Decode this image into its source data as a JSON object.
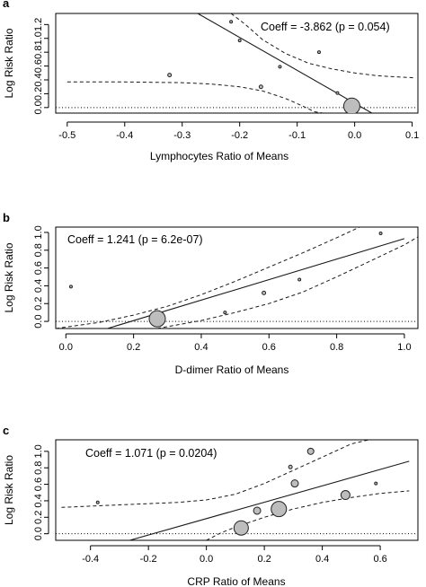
{
  "chart_data": [
    {
      "type": "scatter",
      "panel_label": "a",
      "annotation": "Coeff = -3.862 (p = 0.054)",
      "xlabel": "Lymphocytes Ratio of Means",
      "ylabel": "Log Risk Ratio",
      "xlim": [
        -0.52,
        0.11
      ],
      "ylim": [
        -0.08,
        1.36
      ],
      "xticks": [
        -0.5,
        -0.4,
        -0.3,
        -0.2,
        -0.1,
        0.0,
        0.1
      ],
      "xtick_labels": [
        "-0.5",
        "-0.4",
        "-0.3",
        "-0.2",
        "-0.1",
        "0.0",
        "0.1"
      ],
      "yticks": [
        0.0,
        0.2,
        0.4,
        0.6,
        0.8,
        1.0,
        1.2
      ],
      "ytick_labels": [
        "0.0",
        "0.2",
        "0.4",
        "0.6",
        "0.8",
        "1.0",
        "1.2"
      ],
      "grid": false,
      "points": [
        {
          "x": -0.322,
          "y": 0.47,
          "r": 2
        },
        {
          "x": -0.215,
          "y": 1.24,
          "r": 1.5
        },
        {
          "x": -0.2,
          "y": 0.97,
          "r": 1.5
        },
        {
          "x": -0.163,
          "y": 0.3,
          "r": 2
        },
        {
          "x": -0.13,
          "y": 0.59,
          "r": 1.5
        },
        {
          "x": -0.062,
          "y": 0.8,
          "r": 1.5
        },
        {
          "x": -0.03,
          "y": 0.21,
          "r": 1.5
        },
        {
          "x": -0.012,
          "y": 0.09,
          "r": 2
        },
        {
          "x": -0.005,
          "y": 0.02,
          "r": 9
        }
      ],
      "fit": {
        "x": [
          -0.273,
          0.03
        ],
        "y": [
          1.36,
          -0.08
        ]
      },
      "ci_upper": {
        "x": [
          -0.215,
          -0.19,
          -0.16,
          -0.12,
          -0.08,
          -0.04,
          0.0,
          0.04,
          0.08,
          0.105
        ],
        "y": [
          1.36,
          1.2,
          0.98,
          0.78,
          0.64,
          0.56,
          0.5,
          0.46,
          0.44,
          0.43
        ]
      },
      "ci_lower": {
        "x": [
          -0.5,
          -0.4,
          -0.3,
          -0.25,
          -0.2,
          -0.16,
          -0.12,
          -0.09,
          -0.07,
          -0.055
        ],
        "y": [
          0.37,
          0.37,
          0.36,
          0.34,
          0.3,
          0.24,
          0.13,
          0.02,
          -0.06,
          -0.08
        ]
      },
      "reference_y": 0
    },
    {
      "type": "scatter",
      "panel_label": "b",
      "annotation": "Coeff = 1.241 (p = 6.2e-07)",
      "xlabel": "D-dimer Ratio of Means",
      "ylabel": "Log Risk Ratio",
      "xlim": [
        -0.03,
        1.04
      ],
      "ylim": [
        -0.08,
        1.06
      ],
      "xticks": [
        0.0,
        0.2,
        0.4,
        0.6,
        0.8,
        1.0
      ],
      "xtick_labels": [
        "0.0",
        "0.2",
        "0.4",
        "0.6",
        "0.8",
        "1.0"
      ],
      "yticks": [
        0.0,
        0.2,
        0.4,
        0.6,
        0.8,
        1.0
      ],
      "ytick_labels": [
        "0.0",
        "0.2",
        "0.4",
        "0.6",
        "0.8",
        "1.0"
      ],
      "grid": false,
      "points": [
        {
          "x": 0.015,
          "y": 0.39,
          "r": 1.5
        },
        {
          "x": 0.27,
          "y": 0.03,
          "r": 9
        },
        {
          "x": 0.47,
          "y": 0.1,
          "r": 1.5
        },
        {
          "x": 0.585,
          "y": 0.32,
          "r": 2
        },
        {
          "x": 0.69,
          "y": 0.47,
          "r": 1.5
        },
        {
          "x": 0.93,
          "y": 0.99,
          "r": 1.5
        }
      ],
      "fit": {
        "x": [
          0.123,
          1.0
        ],
        "y": [
          -0.08,
          0.93
        ]
      },
      "ci_upper": {
        "x": [
          -0.03,
          0.1,
          0.2,
          0.3,
          0.4,
          0.5,
          0.6,
          0.7,
          0.8,
          0.868
        ],
        "y": [
          -0.08,
          -0.01,
          0.07,
          0.17,
          0.3,
          0.45,
          0.61,
          0.77,
          0.94,
          1.06
        ]
      },
      "ci_lower": {
        "x": [
          0.27,
          0.4,
          0.5,
          0.6,
          0.7,
          0.8,
          0.9,
          1.0,
          1.04
        ],
        "y": [
          -0.08,
          0.01,
          0.1,
          0.2,
          0.33,
          0.5,
          0.68,
          0.86,
          0.95
        ]
      },
      "reference_y": 0
    },
    {
      "type": "scatter",
      "panel_label": "c",
      "annotation": "Coeff = 1.071 (p = 0.0204)",
      "xlabel": "CRP Ratio of Means",
      "ylabel": "Log Risk Ratio",
      "xlim": [
        -0.52,
        0.73
      ],
      "ylim": [
        -0.08,
        1.14
      ],
      "xticks": [
        -0.4,
        -0.2,
        0.0,
        0.2,
        0.4,
        0.6
      ],
      "xtick_labels": [
        "-0.4",
        "-0.2",
        "0.0",
        "0.2",
        "0.4",
        "0.6"
      ],
      "yticks": [
        0.0,
        0.2,
        0.4,
        0.6,
        0.8,
        1.0
      ],
      "ytick_labels": [
        "0.0",
        "0.2",
        "0.4",
        "0.6",
        "0.8",
        "1.0"
      ],
      "grid": false,
      "points": [
        {
          "x": -0.375,
          "y": 0.38,
          "r": 1.5
        },
        {
          "x": 0.12,
          "y": 0.07,
          "r": 8
        },
        {
          "x": 0.175,
          "y": 0.28,
          "r": 4
        },
        {
          "x": 0.25,
          "y": 0.3,
          "r": 8.5
        },
        {
          "x": 0.29,
          "y": 0.81,
          "r": 2
        },
        {
          "x": 0.305,
          "y": 0.61,
          "r": 4
        },
        {
          "x": 0.36,
          "y": 1.0,
          "r": 3.5
        },
        {
          "x": 0.48,
          "y": 0.47,
          "r": 5
        },
        {
          "x": 0.585,
          "y": 0.61,
          "r": 1.5
        }
      ],
      "fit": {
        "x": [
          -0.265,
          0.7
        ],
        "y": [
          -0.08,
          0.88
        ]
      },
      "ci_upper": {
        "x": [
          -0.5,
          -0.3,
          -0.1,
          0.0,
          0.1,
          0.2,
          0.3,
          0.4,
          0.5,
          0.56
        ],
        "y": [
          0.32,
          0.35,
          0.38,
          0.41,
          0.48,
          0.61,
          0.77,
          0.93,
          1.09,
          1.14
        ]
      },
      "ci_lower": {
        "x": [
          0.0,
          0.05,
          0.1,
          0.2,
          0.3,
          0.4,
          0.5,
          0.6,
          0.7
        ],
        "y": [
          -0.08,
          0.01,
          0.08,
          0.2,
          0.3,
          0.38,
          0.44,
          0.49,
          0.52
        ]
      },
      "reference_y": 0
    }
  ]
}
